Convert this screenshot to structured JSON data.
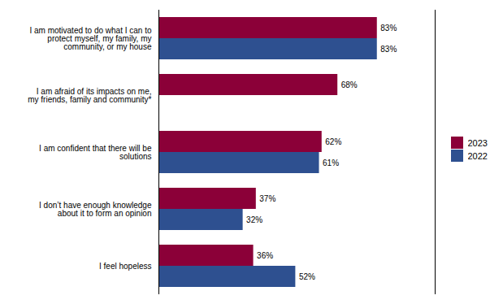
{
  "chart_data": {
    "type": "bar",
    "orientation": "horizontal",
    "categories": [
      "I feel hopeless",
      "I don’t have enough knowledge\nabout it to form an opinion",
      "I am confident that there will be\nsolutions",
      "I am afraid of its impacts on me,\nmy friends, family and community*",
      "I am motivated to do what I can to\nprotect myself, my family, my\ncommunity, or my house"
    ],
    "series": [
      {
        "name": "2023",
        "color": "#8B0038",
        "values": [
          36,
          37,
          62,
          68,
          83
        ],
        "value_labels": [
          "36%",
          "37%",
          "62%",
          "68%",
          "83%"
        ]
      },
      {
        "name": "2022",
        "color": "#2E5090",
        "values": [
          52,
          32,
          61,
          0,
          83
        ],
        "value_labels": [
          "52%",
          "32%",
          "61%",
          null,
          "83%"
        ]
      }
    ],
    "xlim": [
      0,
      105
    ],
    "tick_labels": "y",
    "data_labels": true,
    "legend": "right",
    "grid": false
  }
}
